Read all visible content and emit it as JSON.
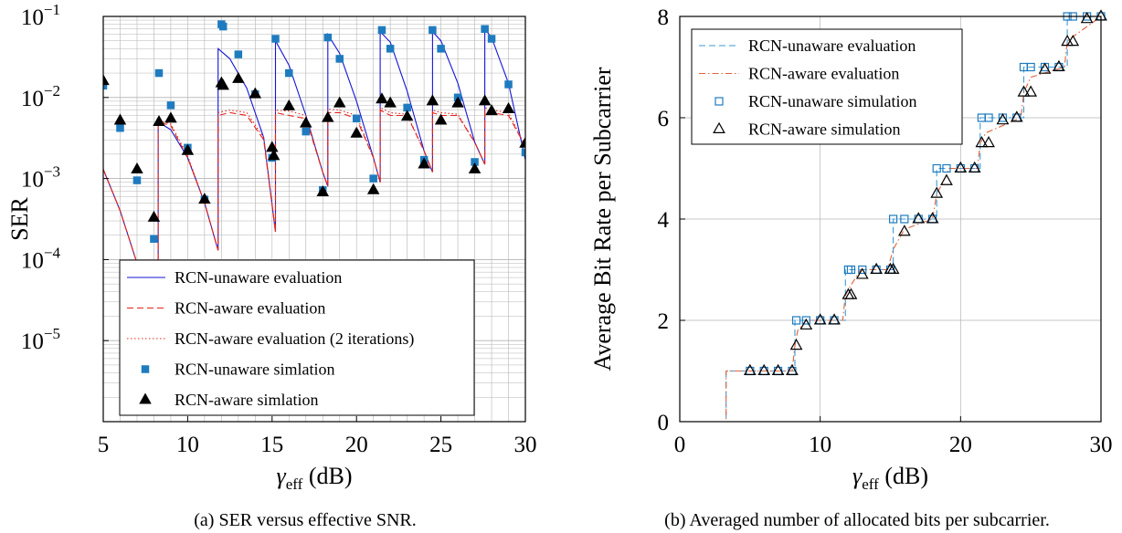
{
  "captions": {
    "a": "(a) SER versus effective SNR.",
    "b": "(b) Averaged number of allocated bits per subcarrier."
  },
  "colors": {
    "unaware_line": "#1515d6",
    "aware_line": "#e3241b",
    "unaware_sim": "#1f7bbf",
    "aware_sim": "#000000",
    "unaware_dash_b": "#3a9ad9",
    "aware_dashdot_b": "#e0623a",
    "grid": "#b4b4b4"
  },
  "chart_data": [
    {
      "type": "line",
      "ylabel": "SER",
      "xlabel_main": "γ",
      "xlabel_sub": "eff",
      "xlabel_unit": " (dB)",
      "xlim": [
        5,
        30
      ],
      "ylim": [
        1e-06,
        0.1
      ],
      "yscale": "log",
      "xticks": [
        "5",
        "10",
        "15",
        "20",
        "25",
        "30"
      ],
      "yticks": [
        {
          "base": "10",
          "exp": "−1"
        },
        {
          "base": "10",
          "exp": "−2"
        },
        {
          "base": "10",
          "exp": "−3"
        },
        {
          "base": "10",
          "exp": "−4"
        },
        {
          "base": "10",
          "exp": "−5"
        }
      ],
      "grid": true,
      "legend_position": "bottom-right",
      "legend": [
        "RCN-unaware evaluation",
        "RCN-aware evaluation",
        "RCN-aware evaluation (2 iterations)",
        "RCN-unaware simlation",
        "RCN-aware simlation"
      ],
      "series": [
        {
          "name": "RCN-unaware evaluation",
          "style": "solid",
          "x": [
            5,
            6,
            7,
            8,
            8.25,
            8.25,
            9,
            10,
            11,
            11.8,
            11.8,
            12.5,
            13.5,
            14.5,
            15.2,
            15.2,
            16,
            17,
            18,
            18.3,
            18.3,
            19,
            20,
            21,
            21.4,
            21.4,
            22,
            23,
            24,
            24.5,
            24.5,
            25,
            26,
            27,
            27.6,
            27.6,
            28,
            29,
            30
          ],
          "y": [
            0.0013,
            0.0004,
            9e-05,
            1.5e-05,
            1e-05,
            0.005,
            0.004,
            0.0018,
            0.0005,
            0.00013,
            0.04,
            0.03,
            0.013,
            0.0032,
            0.00022,
            0.05,
            0.025,
            0.006,
            0.0012,
            0.0008,
            0.06,
            0.035,
            0.009,
            0.0018,
            0.0009,
            0.065,
            0.048,
            0.012,
            0.0022,
            0.0012,
            0.065,
            0.05,
            0.015,
            0.0028,
            0.0015,
            0.07,
            0.055,
            0.015,
            0.0017
          ]
        },
        {
          "name": "RCN-aware evaluation",
          "style": "dashed",
          "x": [
            5,
            6,
            7,
            8,
            8.25,
            8.25,
            9,
            10,
            11,
            11.8,
            11.8,
            12.5,
            13.5,
            14.5,
            15.2,
            15.2,
            16,
            17,
            18,
            18.3,
            18.3,
            19,
            20,
            21,
            21.4,
            21.4,
            22,
            23,
            24,
            24.5,
            24.5,
            25,
            26,
            27,
            27.6,
            27.6,
            28,
            29,
            30
          ],
          "y": [
            0.0013,
            0.0004,
            9e-05,
            1.5e-05,
            1e-05,
            0.005,
            0.0045,
            0.0018,
            0.0005,
            0.00013,
            0.006,
            0.0065,
            0.006,
            0.003,
            0.00022,
            0.0065,
            0.006,
            0.0055,
            0.0012,
            0.0008,
            0.0065,
            0.0065,
            0.0055,
            0.0018,
            0.0009,
            0.007,
            0.006,
            0.006,
            0.0022,
            0.0012,
            0.0065,
            0.006,
            0.006,
            0.0028,
            0.0015,
            0.007,
            0.0065,
            0.006,
            0.0025
          ]
        },
        {
          "name": "RCN-aware evaluation (2 iterations)",
          "style": "dotted",
          "x": [
            5,
            6,
            7,
            8,
            8.25,
            8.25,
            9,
            10,
            11,
            11.8,
            11.8,
            12.5,
            13.5,
            14.5,
            15.2,
            15.2,
            16,
            17,
            18,
            18.3,
            18.3,
            19,
            20,
            21,
            21.4,
            21.4,
            22,
            23,
            24,
            24.5,
            24.5,
            25,
            26,
            27,
            27.6,
            27.6,
            28,
            29,
            30
          ],
          "y": [
            0.0013,
            0.0004,
            9e-05,
            1.5e-05,
            1e-05,
            0.0052,
            0.0047,
            0.0019,
            0.0005,
            0.00013,
            0.0065,
            0.007,
            0.0065,
            0.0032,
            0.00022,
            0.007,
            0.0068,
            0.006,
            0.0012,
            0.0008,
            0.0072,
            0.007,
            0.006,
            0.0018,
            0.0009,
            0.0075,
            0.0065,
            0.0062,
            0.0022,
            0.0012,
            0.007,
            0.0065,
            0.0062,
            0.0028,
            0.0015,
            0.0075,
            0.007,
            0.0065,
            0.0025
          ]
        },
        {
          "name": "RCN-unaware simlation",
          "style": "square",
          "x": [
            5,
            6,
            7,
            8,
            8.3,
            9,
            10,
            11,
            12,
            12.1,
            13,
            14,
            15,
            15.2,
            16,
            17,
            18,
            18.3,
            19,
            20,
            21,
            21.5,
            22,
            23,
            24,
            24.5,
            25,
            26,
            27,
            27.6,
            28,
            29,
            30
          ],
          "y": [
            0.014,
            0.0042,
            0.00095,
            0.00018,
            0.02,
            0.008,
            0.0024,
            0.00055,
            0.08,
            0.075,
            0.034,
            0.011,
            0.0018,
            0.053,
            0.02,
            0.0038,
            0.00072,
            0.055,
            0.03,
            0.0055,
            0.001,
            0.068,
            0.04,
            0.0075,
            0.0017,
            0.068,
            0.04,
            0.01,
            0.0016,
            0.07,
            0.053,
            0.0145,
            0.0021
          ]
        },
        {
          "name": "RCN-aware simlation",
          "style": "triangle",
          "x": [
            5,
            6,
            7,
            8,
            8.3,
            9,
            10,
            11,
            12,
            12.1,
            13,
            14,
            15,
            15.1,
            16,
            17,
            18,
            18.3,
            19,
            20,
            21,
            21.5,
            22,
            23,
            24,
            24.5,
            25,
            26,
            27,
            27.6,
            28,
            29,
            30
          ],
          "y": [
            0.016,
            0.0052,
            0.0013,
            0.00033,
            0.005,
            0.0055,
            0.0022,
            0.00055,
            0.015,
            0.014,
            0.017,
            0.011,
            0.0024,
            0.0019,
            0.0078,
            0.0048,
            0.00068,
            0.0056,
            0.0085,
            0.0036,
            0.00072,
            0.0095,
            0.0085,
            0.0058,
            0.0015,
            0.009,
            0.0052,
            0.0085,
            0.0013,
            0.009,
            0.0068,
            0.0072,
            0.0027
          ]
        }
      ]
    },
    {
      "type": "line",
      "ylabel": "Average Bit Rate per Subcarrier",
      "xlabel_main": "γ",
      "xlabel_sub": "eff",
      "xlabel_unit": " (dB)",
      "xlim": [
        0,
        30
      ],
      "ylim": [
        0,
        8
      ],
      "xticks": [
        "0",
        "10",
        "20",
        "30"
      ],
      "yticks": [
        "0",
        "2",
        "4",
        "6",
        "8"
      ],
      "grid": true,
      "legend_position": "top-left",
      "legend": [
        "RCN-unaware evaluation",
        "RCN-aware evaluation",
        "RCN-unaware simulation",
        "RCN-aware simulation"
      ],
      "series": [
        {
          "name": "RCN-unaware evaluation",
          "style": "dashed",
          "x": [
            0,
            3.3,
            3.3,
            8.2,
            8.2,
            11.8,
            11.8,
            15.2,
            15.2,
            18.3,
            18.3,
            21.4,
            21.4,
            24.5,
            24.5,
            27.6,
            27.6,
            30
          ],
          "y": [
            0,
            0,
            1,
            1,
            2,
            2,
            3,
            3,
            4,
            4,
            5,
            5,
            6,
            6,
            7,
            7,
            8,
            8
          ]
        },
        {
          "name": "RCN-aware evaluation",
          "style": "dashdot",
          "x": [
            0,
            3.3,
            3.3,
            8.0,
            8.2,
            8.4,
            9.0,
            11.6,
            11.8,
            12.2,
            12.9,
            14.8,
            15.2,
            16.0,
            18.0,
            18.3,
            18.7,
            19.2,
            21.2,
            21.4,
            21.8,
            24.3,
            24.5,
            25.0,
            27.4,
            27.6,
            28.0,
            30
          ],
          "y": [
            0,
            0,
            1,
            1,
            1.5,
            1.8,
            2,
            2,
            2.5,
            2.7,
            3,
            3,
            3.4,
            3.8,
            4,
            4.5,
            4.7,
            5,
            5,
            5.5,
            5.7,
            6,
            6.5,
            6.8,
            7,
            7.5,
            7.6,
            8
          ]
        },
        {
          "name": "RCN-unaware simulation",
          "style": "square",
          "x": [
            5,
            6,
            7,
            8,
            8.3,
            9,
            10,
            11,
            12,
            12.2,
            13,
            14,
            15,
            15.2,
            16,
            17,
            18,
            18.3,
            19,
            20,
            21,
            21.5,
            22,
            23,
            24,
            24.5,
            25,
            26,
            27,
            27.6,
            28,
            29,
            30
          ],
          "y": [
            1,
            1,
            1,
            1,
            2,
            2,
            2,
            2,
            3,
            3,
            3,
            3,
            3,
            4,
            4,
            4,
            4,
            5,
            5,
            5,
            5,
            6,
            6,
            6,
            6,
            7,
            7,
            7,
            7,
            8,
            8,
            8,
            8
          ]
        },
        {
          "name": "RCN-aware simulation",
          "style": "triangle",
          "x": [
            5,
            6,
            7,
            8,
            8.3,
            9,
            10,
            11,
            12,
            12.2,
            13,
            14,
            15,
            15.2,
            16,
            17,
            18,
            18.3,
            19,
            20,
            21,
            21.5,
            22,
            23,
            24,
            24.5,
            25,
            26,
            27,
            27.6,
            28,
            29,
            30
          ],
          "y": [
            1,
            1,
            1,
            1,
            1.5,
            1.9,
            2,
            2,
            2.5,
            2.5,
            2.9,
            3,
            3,
            3,
            3.75,
            4,
            4,
            4.5,
            4.75,
            5,
            5,
            5.5,
            5.5,
            5.95,
            6,
            6.5,
            6.5,
            6.95,
            7,
            7.5,
            7.5,
            7.95,
            8
          ]
        }
      ]
    }
  ]
}
